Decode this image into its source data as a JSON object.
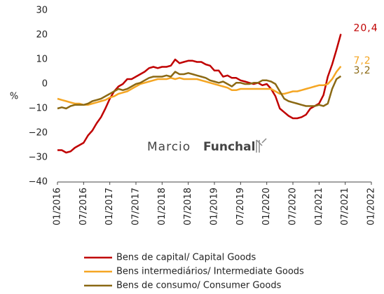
{
  "chart_data": {
    "type": "line",
    "y_label": "%",
    "watermark": [
      "Marcio",
      "Funchal"
    ],
    "x": [
      "2016-01",
      "2016-02",
      "2016-03",
      "2016-04",
      "2016-05",
      "2016-06",
      "2016-07",
      "2016-08",
      "2016-09",
      "2016-10",
      "2016-11",
      "2016-12",
      "2017-01",
      "2017-02",
      "2017-03",
      "2017-04",
      "2017-05",
      "2017-06",
      "2017-07",
      "2017-08",
      "2017-09",
      "2017-10",
      "2017-11",
      "2017-12",
      "2018-01",
      "2018-02",
      "2018-03",
      "2018-04",
      "2018-05",
      "2018-06",
      "2018-07",
      "2018-08",
      "2018-09",
      "2018-10",
      "2018-11",
      "2018-12",
      "2019-01",
      "2019-02",
      "2019-03",
      "2019-04",
      "2019-05",
      "2019-06",
      "2019-07",
      "2019-08",
      "2019-09",
      "2019-10",
      "2019-11",
      "2019-12",
      "2020-01",
      "2020-02",
      "2020-03",
      "2020-04",
      "2020-05",
      "2020-06",
      "2020-07",
      "2020-08",
      "2020-09",
      "2020-10",
      "2020-11",
      "2020-12",
      "2021-01",
      "2021-02",
      "2021-03",
      "2021-04",
      "2021-05",
      "2021-06"
    ],
    "xlim": [
      "2016-01",
      "2022-01"
    ],
    "xticks": [
      {
        "value": "2016-01",
        "label": "01/2016"
      },
      {
        "value": "2016-07",
        "label": "07/2016"
      },
      {
        "value": "2017-01",
        "label": "01/2017"
      },
      {
        "value": "2017-07",
        "label": "07/2017"
      },
      {
        "value": "2018-01",
        "label": "01/2018"
      },
      {
        "value": "2018-07",
        "label": "07/2018"
      },
      {
        "value": "2019-01",
        "label": "01/2019"
      },
      {
        "value": "2019-07",
        "label": "07/2019"
      },
      {
        "value": "2020-01",
        "label": "01/2020"
      },
      {
        "value": "2020-07",
        "label": "07/2020"
      },
      {
        "value": "2021-01",
        "label": "01/2021"
      },
      {
        "value": "2021-07",
        "label": "07/2021"
      },
      {
        "value": "2022-01",
        "label": "01/2022"
      }
    ],
    "ylim": [
      -40,
      30
    ],
    "yticks": [
      {
        "value": -40,
        "label": "−40"
      },
      {
        "value": -30,
        "label": "−30"
      },
      {
        "value": -20,
        "label": "−20"
      },
      {
        "value": -10,
        "label": "−10"
      },
      0,
      10,
      20,
      30
    ],
    "grid": false,
    "legend": "bottom",
    "series": [
      {
        "name": "Bens de capital/ Capital Goods",
        "color": "#c00000",
        "values": [
          -27,
          -27,
          -28,
          -27.5,
          -26,
          -25,
          -24,
          -21,
          -19,
          -16,
          -13.5,
          -10,
          -6,
          -3,
          -1,
          0,
          2,
          2,
          3,
          4,
          5,
          6.5,
          7,
          6.5,
          7,
          7,
          7.5,
          10,
          8.5,
          9,
          9.5,
          9.5,
          9,
          9,
          8,
          7.5,
          5.5,
          5.5,
          3,
          3.5,
          2.5,
          2.5,
          1.5,
          1,
          0.5,
          0,
          0.5,
          -0.5,
          0,
          -2,
          -5,
          -10,
          -11.5,
          -13,
          -14,
          -14,
          -13.5,
          -12.5,
          -10,
          -9,
          -8,
          -4.5,
          3,
          8,
          14,
          20.4
        ],
        "value_labels": [
          null,
          null,
          null,
          null,
          null,
          null,
          null,
          null,
          null,
          null,
          null,
          null,
          null,
          null,
          null,
          null,
          null,
          null,
          null,
          null,
          null,
          null,
          null,
          null,
          null,
          null,
          null,
          null,
          null,
          null,
          null,
          null,
          null,
          null,
          null,
          null,
          null,
          null,
          null,
          null,
          null,
          null,
          null,
          null,
          null,
          null,
          null,
          null,
          null,
          null,
          null,
          null,
          null,
          null,
          null,
          null,
          null,
          null,
          null,
          null,
          null,
          null,
          null,
          null,
          null,
          "20,4"
        ]
      },
      {
        "name": "Bens intermediários/ Intermediate Goods",
        "color": "#f5a623",
        "values": [
          -6,
          -6.5,
          -7,
          -7.5,
          -8,
          -8,
          -8.5,
          -8.5,
          -8,
          -7.5,
          -7,
          -6.5,
          -5.5,
          -5,
          -4,
          -3.5,
          -3,
          -2,
          -1,
          0,
          0.5,
          1,
          1.5,
          2,
          2,
          2,
          2.5,
          2,
          2.5,
          2,
          2,
          2,
          2,
          1.5,
          1,
          0.5,
          0,
          -0.5,
          -1,
          -1.5,
          -2.5,
          -2.5,
          -2,
          -2,
          -2,
          -2,
          -2,
          -2,
          -2,
          -2,
          -3,
          -4,
          -4,
          -3.5,
          -3,
          -3,
          -2.5,
          -2,
          -1.5,
          -1,
          -0.5,
          -0.5,
          0,
          2,
          5,
          7.2
        ],
        "value_labels": [
          null,
          null,
          null,
          null,
          null,
          null,
          null,
          null,
          null,
          null,
          null,
          null,
          null,
          null,
          null,
          null,
          null,
          null,
          null,
          null,
          null,
          null,
          null,
          null,
          null,
          null,
          null,
          null,
          null,
          null,
          null,
          null,
          null,
          null,
          null,
          null,
          null,
          null,
          null,
          null,
          null,
          null,
          null,
          null,
          null,
          null,
          null,
          null,
          null,
          null,
          null,
          null,
          null,
          null,
          null,
          null,
          null,
          null,
          null,
          null,
          null,
          null,
          null,
          null,
          null,
          "7,2"
        ]
      },
      {
        "name": "Bens de consumo/ Consumer Goods",
        "color": "#8b6914",
        "values": [
          -10,
          -9.5,
          -10,
          -9,
          -8.5,
          -8.5,
          -8.5,
          -8,
          -7,
          -6.5,
          -6,
          -5,
          -4,
          -3,
          -2,
          -2.5,
          -2,
          -1,
          0,
          0.5,
          1.5,
          2.5,
          3,
          3,
          3,
          3.5,
          3,
          5,
          4,
          4,
          4.5,
          4,
          3.5,
          3,
          2.5,
          1.5,
          1,
          0.5,
          1,
          0,
          -1,
          0.5,
          0.5,
          0,
          0,
          0.5,
          0.5,
          1.5,
          1.5,
          1,
          0,
          -3,
          -6,
          -7,
          -7.5,
          -8,
          -8.5,
          -9,
          -9,
          -9,
          -8.5,
          -9,
          -8,
          -2,
          2,
          3.2
        ],
        "value_labels": [
          null,
          null,
          null,
          null,
          null,
          null,
          null,
          null,
          null,
          null,
          null,
          null,
          null,
          null,
          null,
          null,
          null,
          null,
          null,
          null,
          null,
          null,
          null,
          null,
          null,
          null,
          null,
          null,
          null,
          null,
          null,
          null,
          null,
          null,
          null,
          null,
          null,
          null,
          null,
          null,
          null,
          null,
          null,
          null,
          null,
          null,
          null,
          null,
          null,
          null,
          null,
          null,
          null,
          null,
          null,
          null,
          null,
          null,
          null,
          null,
          null,
          null,
          null,
          null,
          null,
          "3,2"
        ]
      }
    ]
  }
}
